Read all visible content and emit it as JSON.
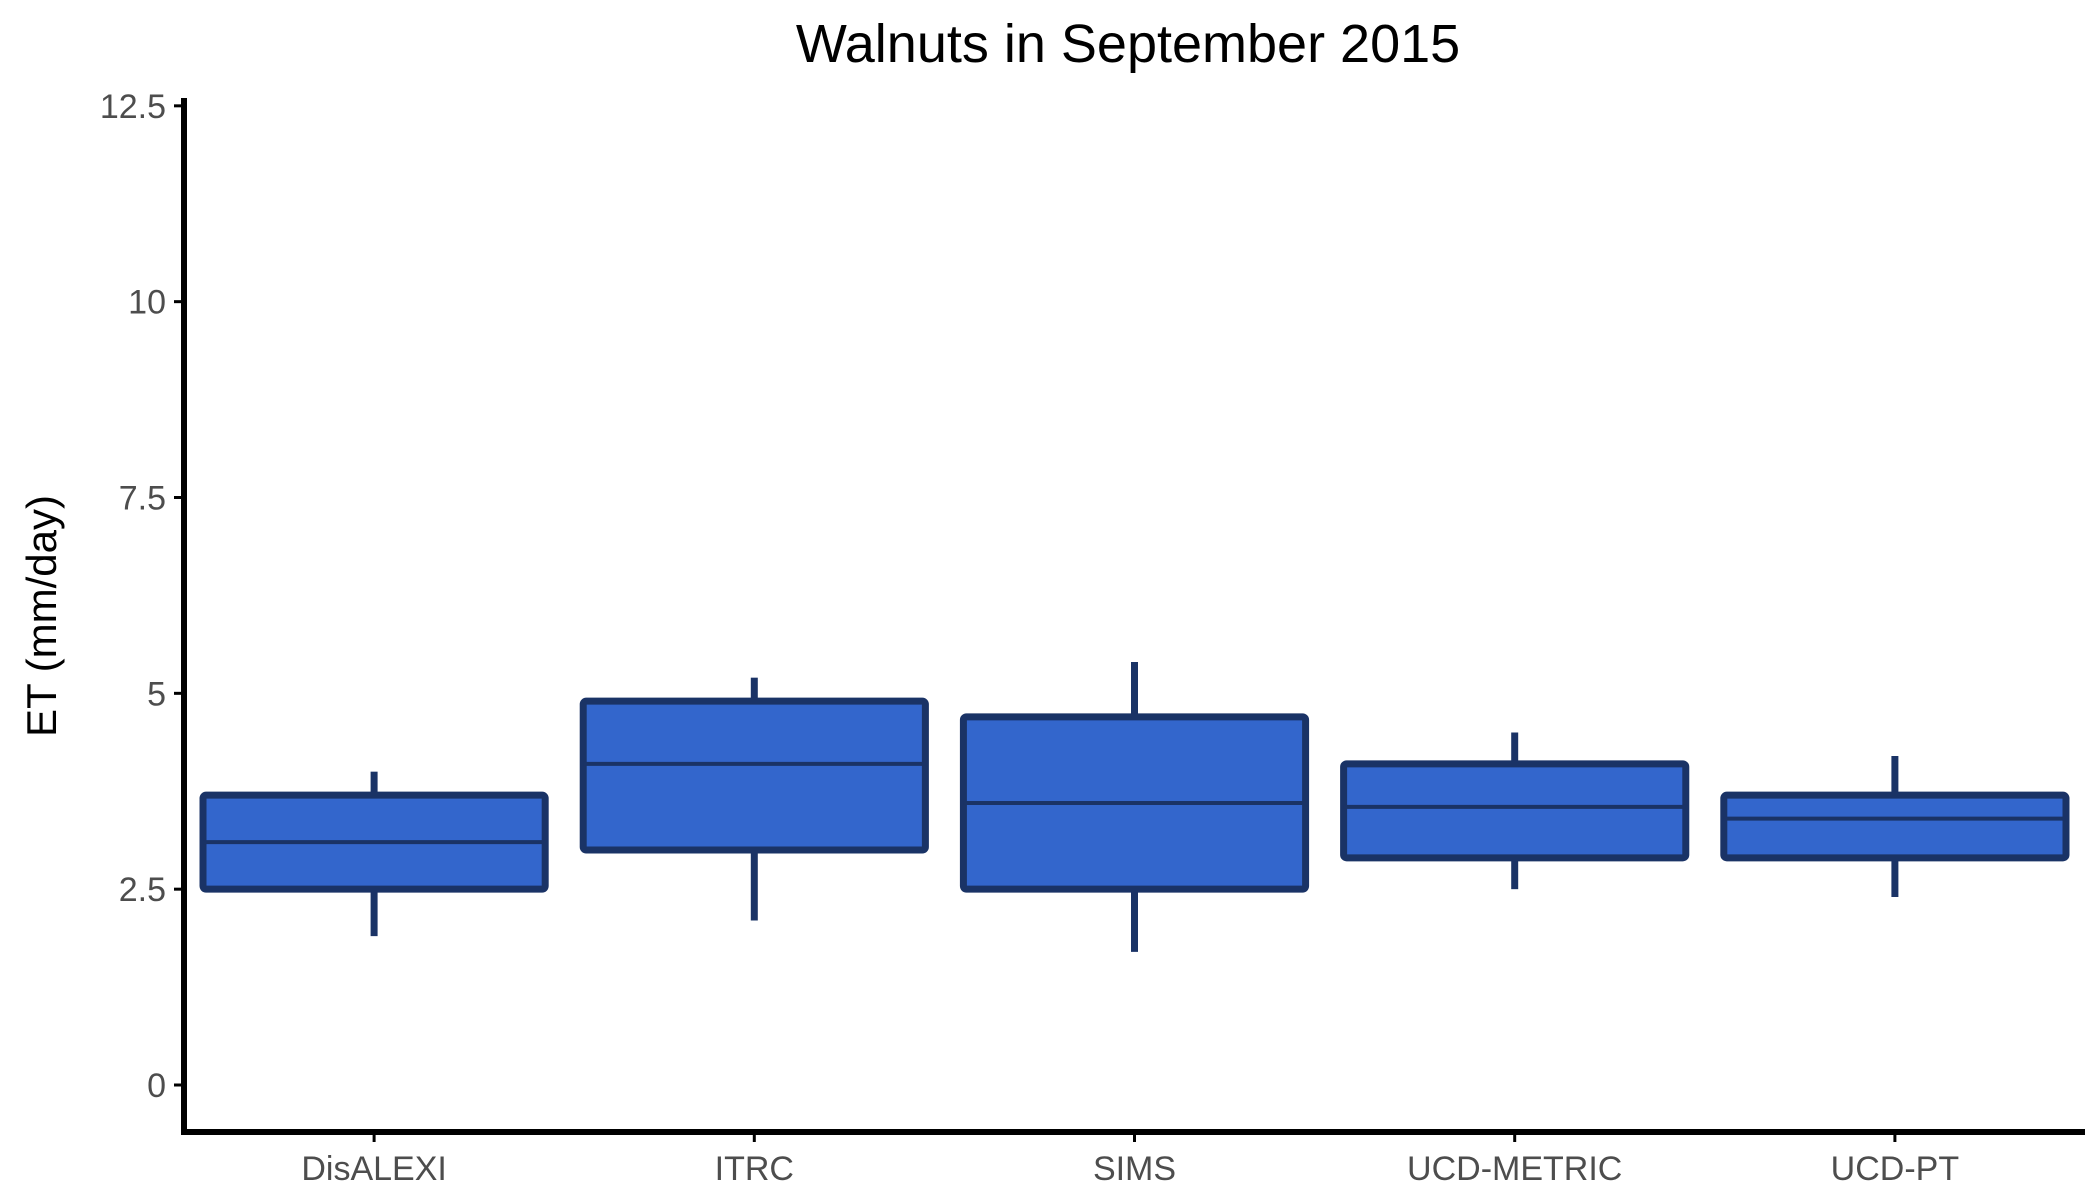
{
  "chart_data": {
    "type": "box",
    "title": "Walnuts in September 2015",
    "xlabel": "",
    "ylabel": "ET (mm/day)",
    "ylim": [
      -0.6,
      12.6
    ],
    "yticks": [
      0,
      2.5,
      5,
      7.5,
      10,
      12.5
    ],
    "ytick_labels": [
      "0",
      "2.5",
      "5",
      "7.5",
      "10",
      "12.5"
    ],
    "categories": [
      "DisALEXI",
      "ITRC",
      "SIMS",
      "UCD-METRIC",
      "UCD-PT"
    ],
    "boxes": [
      {
        "category": "DisALEXI",
        "whisker_low": 1.9,
        "q1": 2.5,
        "median": 3.1,
        "q3": 3.7,
        "whisker_high": 4.0
      },
      {
        "category": "ITRC",
        "whisker_low": 2.1,
        "q1": 3.0,
        "median": 4.1,
        "q3": 4.9,
        "whisker_high": 5.2
      },
      {
        "category": "SIMS",
        "whisker_low": 1.7,
        "q1": 2.5,
        "median": 3.6,
        "q3": 4.7,
        "whisker_high": 5.4
      },
      {
        "category": "UCD-METRIC",
        "whisker_low": 2.5,
        "q1": 2.9,
        "median": 3.55,
        "q3": 4.1,
        "whisker_high": 4.5
      },
      {
        "category": "UCD-PT",
        "whisker_low": 2.4,
        "q1": 2.9,
        "median": 3.4,
        "q3": 3.7,
        "whisker_high": 4.2
      }
    ],
    "grid": false,
    "legend": "none",
    "colors": {
      "fill": "#3366cc",
      "outline": "#1a3366",
      "axis": "#000000",
      "tick_text": "#4d4d4d"
    }
  }
}
